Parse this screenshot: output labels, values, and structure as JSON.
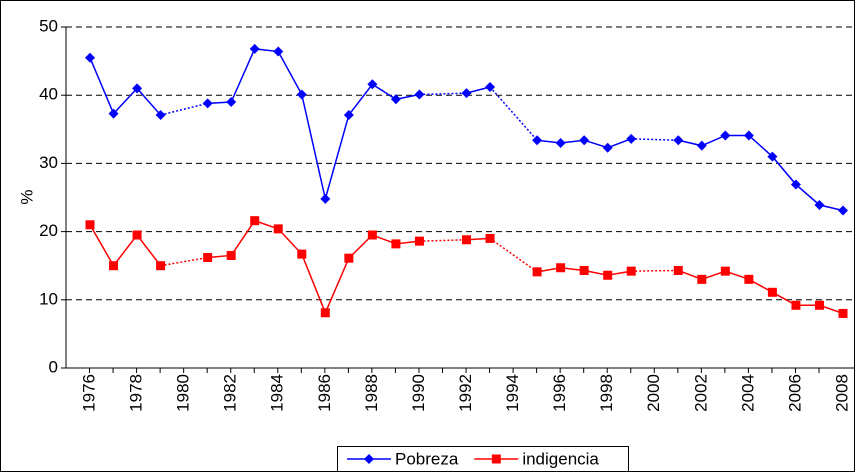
{
  "chart_data": {
    "type": "line",
    "y_label": "%",
    "categories": [
      "1976",
      null,
      "1978",
      null,
      "1980",
      null,
      "1982",
      null,
      "1984",
      null,
      "1986",
      null,
      "1988",
      null,
      "1990",
      null,
      "1992",
      null,
      "1994",
      null,
      "1996",
      null,
      "1998",
      null,
      "2000",
      null,
      "2002",
      null,
      "2004",
      null,
      "2006",
      null,
      "2008"
    ],
    "series": [
      {
        "name": "Pobreza",
        "color": "#0000ff",
        "marker": "diamond",
        "values": [
          45.5,
          37.3,
          41,
          37.1,
          null,
          38.8,
          39,
          46.8,
          46.4,
          40.1,
          24.8,
          37.1,
          41.6,
          39.4,
          40.1,
          null,
          40.3,
          41.2,
          null,
          33.4,
          33,
          33.4,
          32.3,
          33.6,
          null,
          33.4,
          32.6,
          34.1,
          34.1,
          31,
          26.9,
          23.9,
          23.1
        ]
      },
      {
        "name": "indigencia",
        "color": "#ff0000",
        "marker": "square",
        "values": [
          21,
          15,
          19.5,
          15,
          null,
          16.2,
          16.5,
          21.6,
          20.4,
          16.7,
          8.1,
          16.1,
          19.5,
          18.2,
          18.6,
          null,
          18.8,
          19,
          null,
          14.1,
          14.7,
          14.3,
          13.6,
          14.2,
          null,
          14.3,
          13,
          14.2,
          13,
          11.1,
          9.2,
          9.2,
          8
        ]
      }
    ],
    "ylim": [
      0,
      50
    ],
    "yticks": [
      0,
      10,
      20,
      30,
      40,
      50
    ],
    "grid": true,
    "legend": "bottom"
  }
}
